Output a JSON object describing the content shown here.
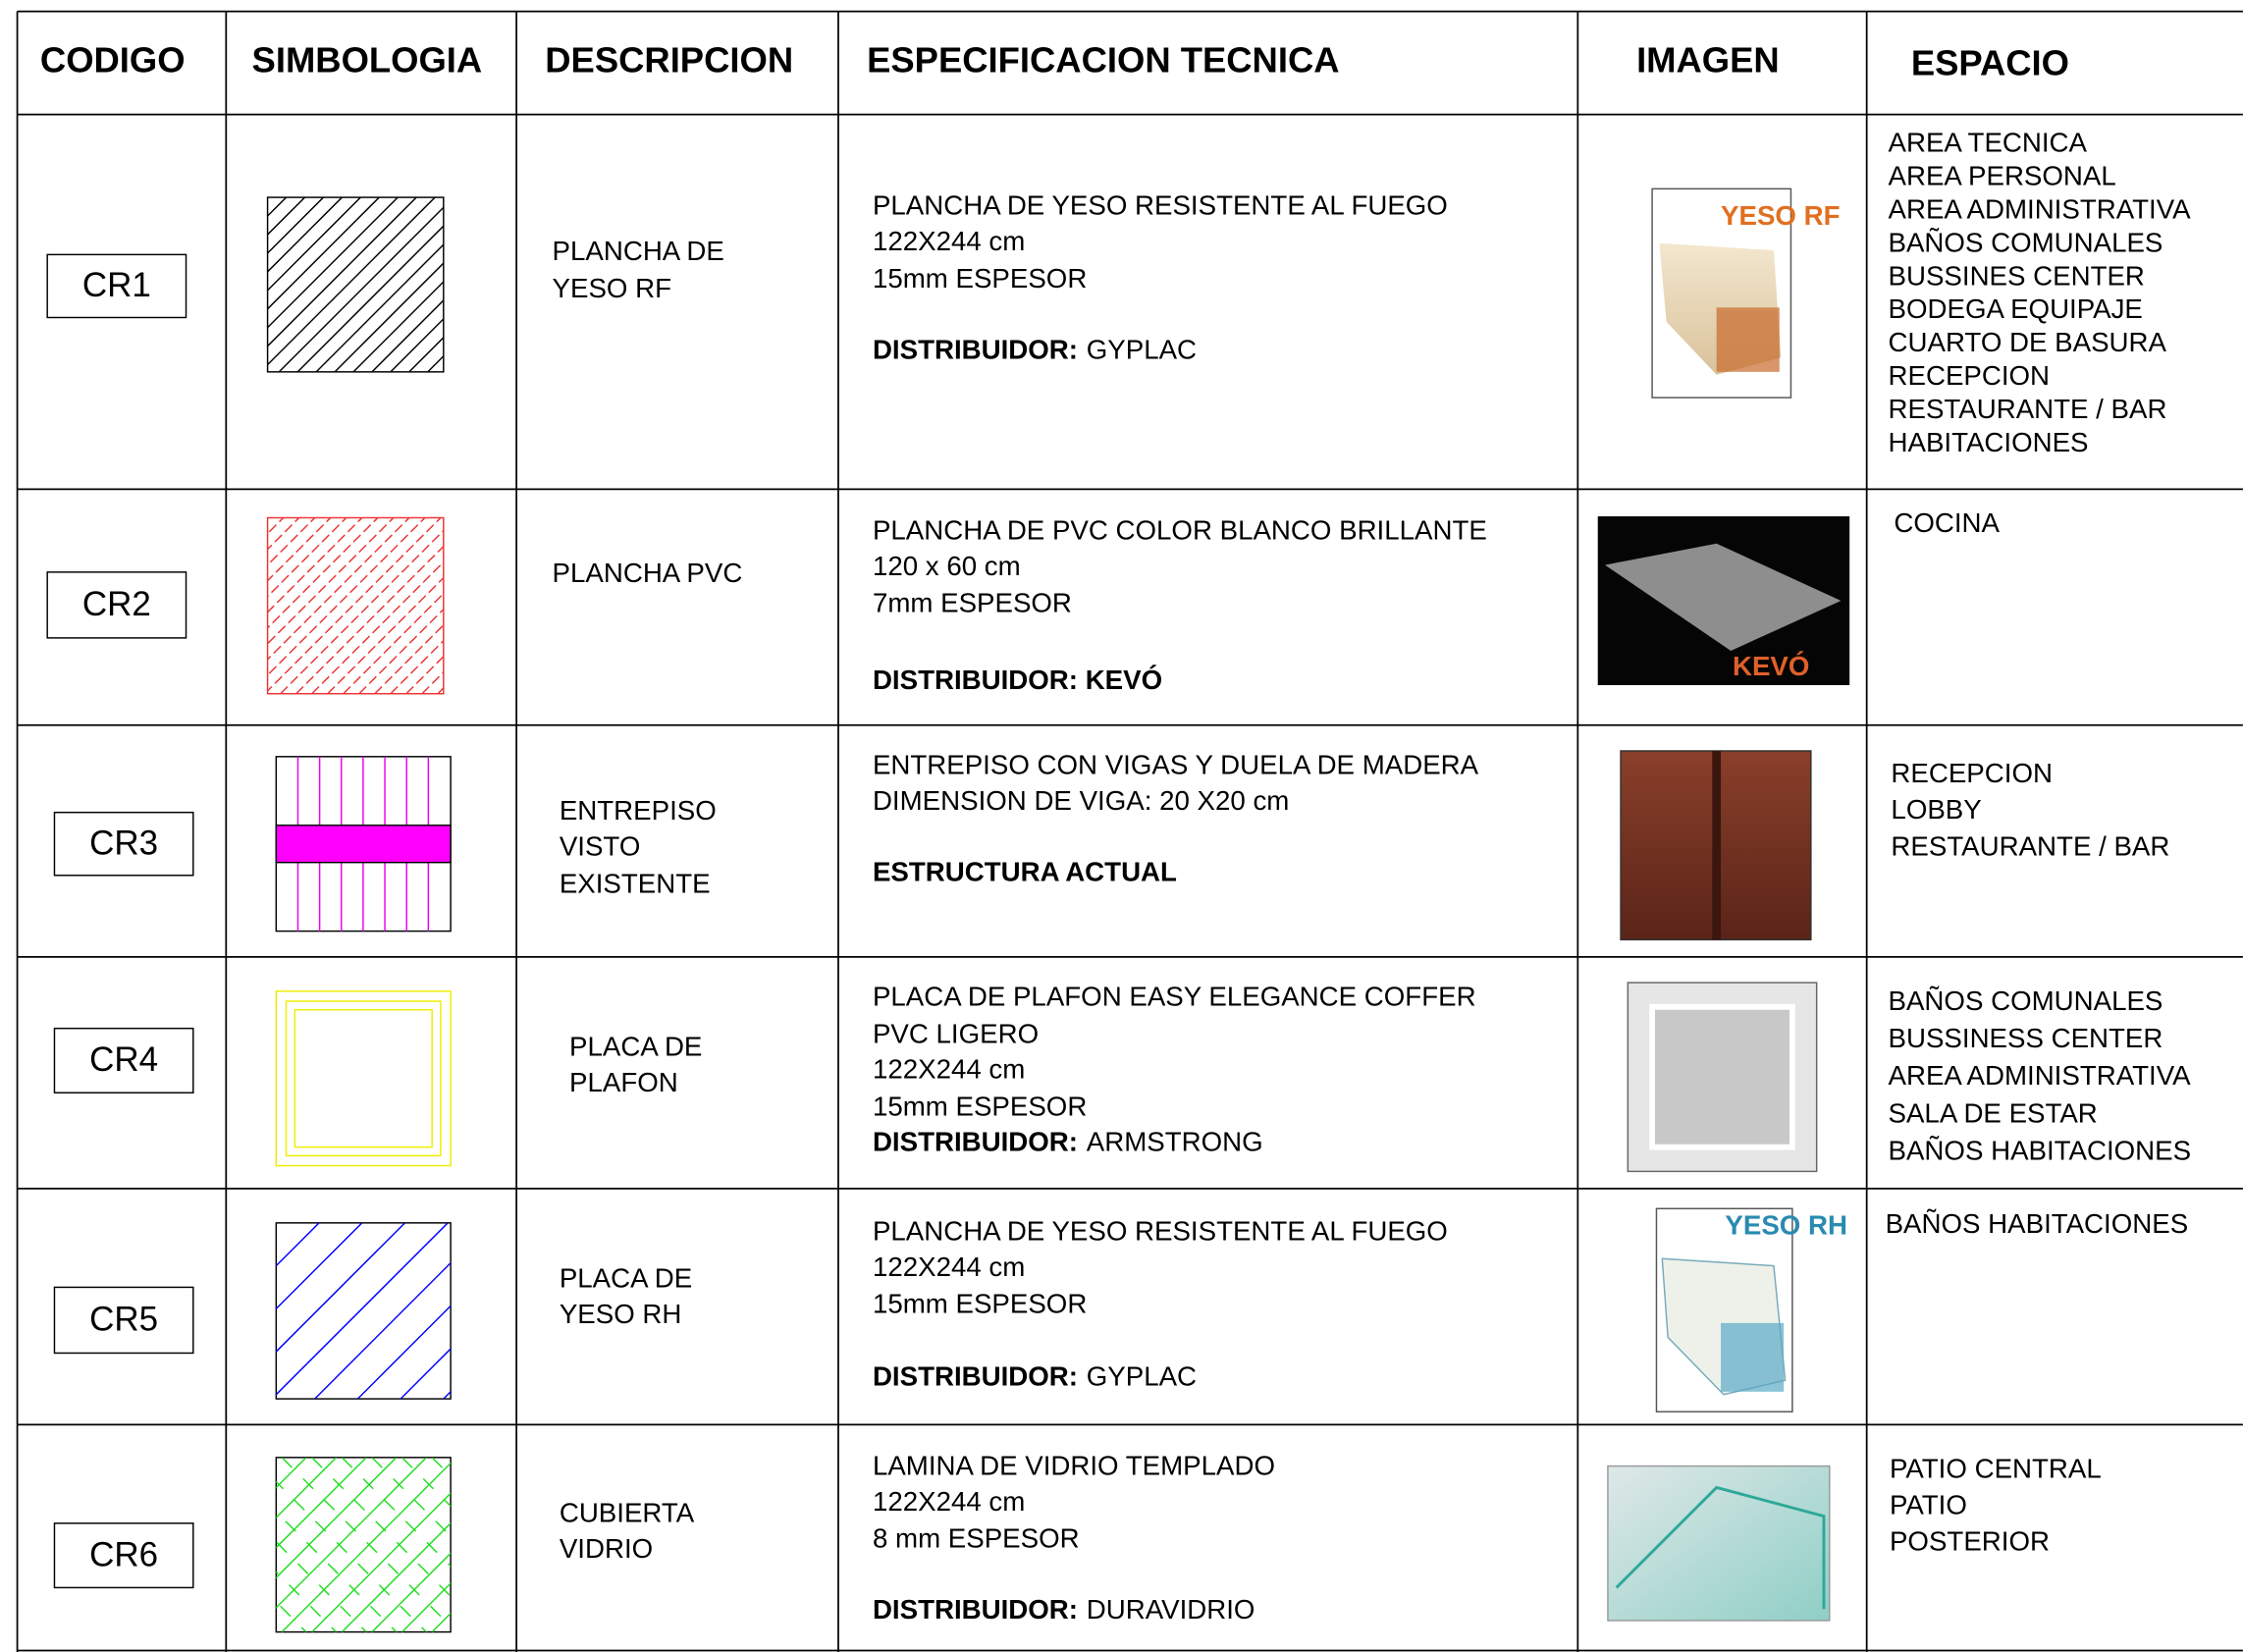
{
  "header": {
    "columns": [
      "CODIGO",
      "SIMBOLOGIA",
      "DESCRIPCION",
      "ESPECIFICACION TECNICA",
      "IMAGEN",
      "ESPACIO"
    ]
  },
  "rows": [
    {
      "code": "CR1",
      "description": [
        "PLANCHA DE",
        "YESO RF"
      ],
      "spec": [
        "PLANCHA DE YESO RESISTENTE AL FUEGO",
        "122X244 cm",
        "15mm ESPESOR",
        {
          "bold": "DISTRIBUIDOR:",
          "text": "GYPLAC"
        }
      ],
      "image_label": "YESO RF",
      "spaces": [
        "AREA TECNICA",
        "AREA PERSONAL",
        "AREA ADMINISTRATIVA",
        "BAÑOS COMUNALES",
        "BUSSINES CENTER",
        "BODEGA EQUIPAJE",
        "CUARTO DE BASURA",
        "RECEPCION",
        "RESTAURANTE / BAR",
        "HABITACIONES"
      ]
    },
    {
      "code": "CR2",
      "description": [
        "PLANCHA PVC"
      ],
      "spec": [
        "PLANCHA DE PVC COLOR BLANCO BRILLANTE",
        "120 x 60 cm",
        "7mm ESPESOR",
        {
          "bold": "DISTRIBUIDOR: KEVÓ"
        }
      ],
      "image_label": "KEVÓ",
      "spaces": [
        "COCINA"
      ]
    },
    {
      "code": "CR3",
      "description": [
        "ENTREPISO",
        "VISTO",
        "EXISTENTE"
      ],
      "spec": [
        "ENTREPISO CON VIGAS Y DUELA DE MADERA",
        "DIMENSION DE VIGA: 20 X20 cm",
        {
          "bold": "ESTRUCTURA ACTUAL"
        }
      ],
      "spaces": [
        "RECEPCION",
        "LOBBY",
        "RESTAURANTE / BAR"
      ]
    },
    {
      "code": "CR4",
      "description": [
        "PLACA DE",
        "PLAFON"
      ],
      "spec": [
        "PLACA DE PLAFON EASY ELEGANCE COFFER",
        "PVC LIGERO",
        "122X244 cm",
        "15mm ESPESOR",
        {
          "bold": "DISTRIBUIDOR:",
          "text": "ARMSTRONG"
        }
      ],
      "spaces": [
        "BAÑOS COMUNALES",
        "BUSSINESS CENTER",
        "AREA ADMINISTRATIVA",
        "SALA DE ESTAR",
        "BAÑOS HABITACIONES"
      ]
    },
    {
      "code": "CR5",
      "description": [
        "PLACA DE",
        "YESO RH"
      ],
      "spec": [
        "PLANCHA DE YESO RESISTENTE AL FUEGO",
        "122X244 cm",
        "15mm ESPESOR",
        {
          "bold": "DISTRIBUIDOR:",
          "text": "GYPLAC"
        }
      ],
      "image_label": "YESO RH",
      "spaces": [
        "BAÑOS HABITACIONES"
      ]
    },
    {
      "code": "CR6",
      "description": [
        "CUBIERTA",
        "VIDRIO"
      ],
      "spec": [
        "LAMINA DE VIDRIO TEMPLADO",
        "122X244 cm",
        "8 mm ESPESOR",
        {
          "bold": "DISTRIBUIDOR:",
          "text": "DURAVIDRIO"
        }
      ],
      "spaces": [
        "PATIO CENTRAL",
        "PATIO",
        "POSTERIOR"
      ]
    }
  ]
}
